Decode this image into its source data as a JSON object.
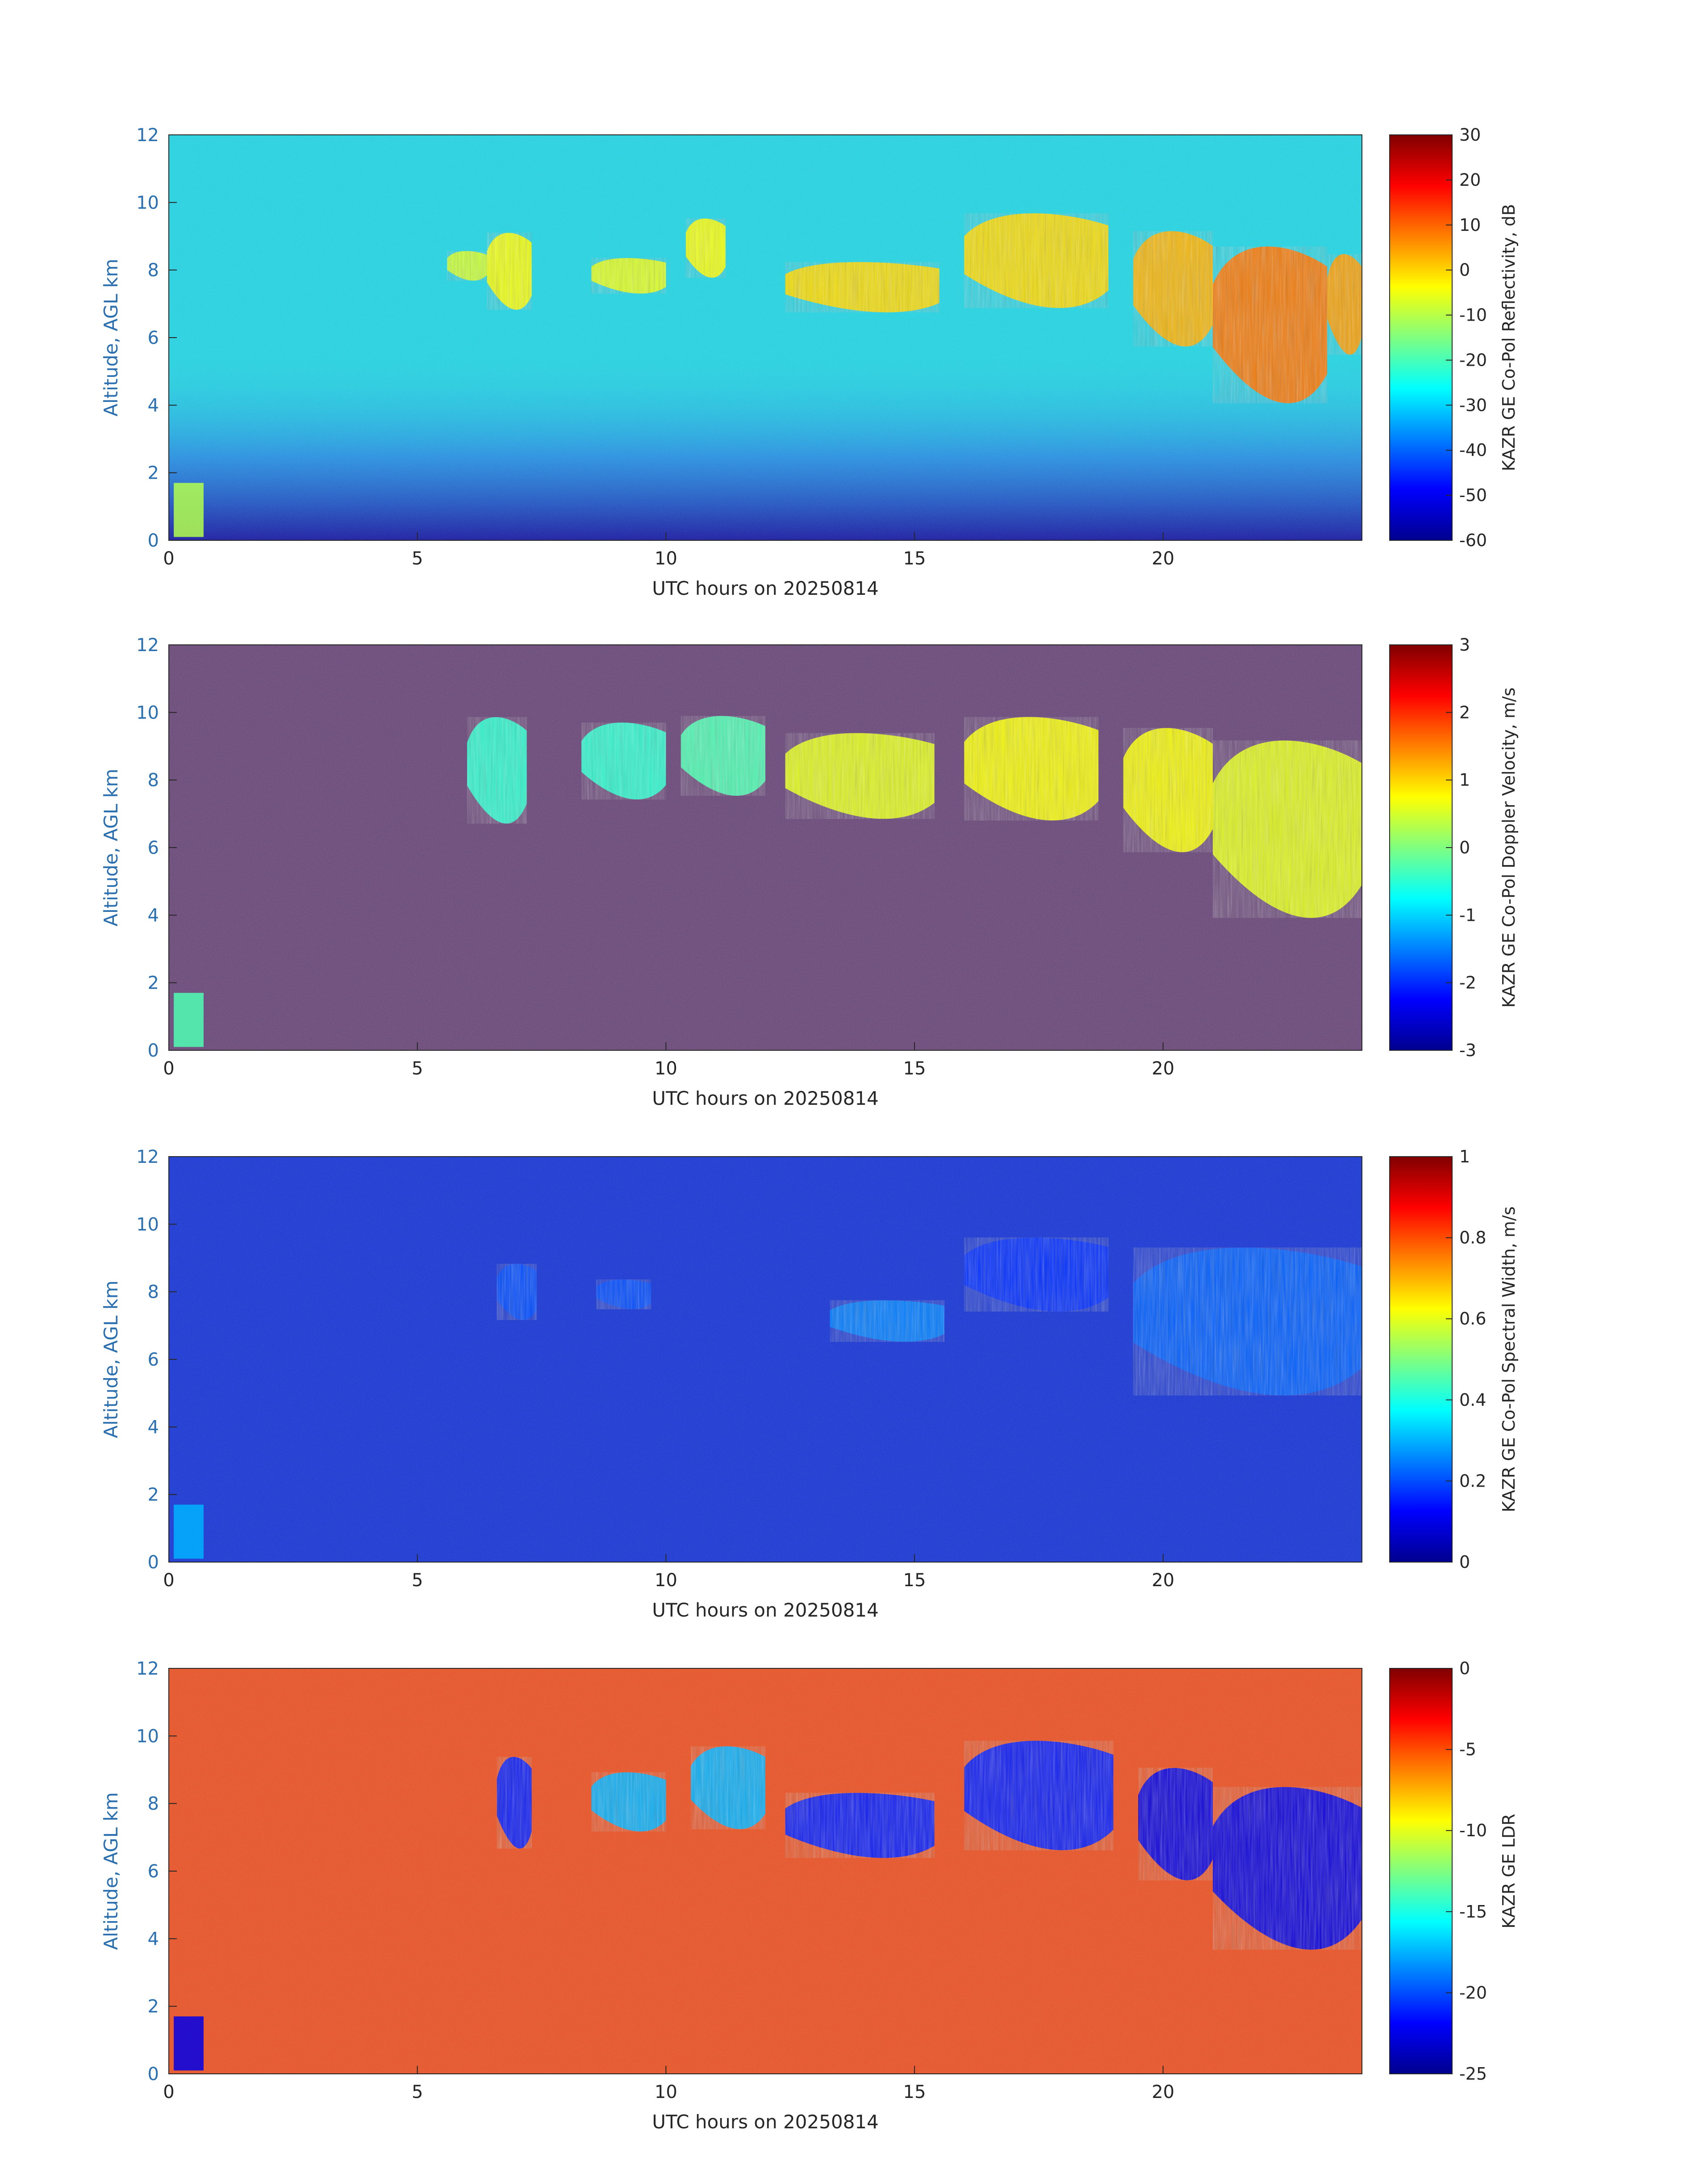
{
  "chart_data": [
    {
      "type": "heatmap",
      "xlabel": "UTC hours on 20250814",
      "ylabel": "Altitude, AGL km",
      "xlim": [
        0,
        24
      ],
      "ylim": [
        0,
        12
      ],
      "xticks": [
        0,
        5,
        10,
        15,
        20
      ],
      "yticks": [
        0,
        2,
        4,
        6,
        8,
        10,
        12
      ],
      "colormap": "jet",
      "colorbar_label": "KAZR GE Co-Pol Reflectivity, dB",
      "clim": [
        -60,
        30
      ],
      "colorbar_ticks": [
        -60,
        -50,
        -40,
        -30,
        -20,
        -10,
        0,
        10,
        20,
        30
      ],
      "background_color": "#17d8e8",
      "cloud_top_km": [
        [
          5.5,
          8.1
        ],
        [
          6.5,
          9.2
        ],
        [
          7.2,
          8.3
        ],
        [
          8.5,
          8.2
        ],
        [
          9.5,
          8.0
        ],
        [
          10.5,
          9.5
        ],
        [
          11.5,
          8.6
        ],
        [
          12.5,
          8.3
        ],
        [
          13.5,
          8.2
        ],
        [
          14.5,
          8.1
        ],
        [
          15.5,
          7.4
        ],
        [
          16.2,
          10.0
        ],
        [
          17.0,
          9.5
        ],
        [
          18.0,
          9.0
        ],
        [
          19.0,
          8.8
        ],
        [
          19.5,
          9.4
        ],
        [
          20.5,
          9.1
        ],
        [
          21.5,
          8.8
        ],
        [
          22.5,
          8.5
        ],
        [
          23.5,
          8.6
        ],
        [
          24.0,
          8.3
        ]
      ],
      "cloud_base_km": [
        [
          5.5,
          7.9
        ],
        [
          6.5,
          7.6
        ],
        [
          7.2,
          6.6
        ],
        [
          8.5,
          7.7
        ],
        [
          9.5,
          7.2
        ],
        [
          10.5,
          8.0
        ],
        [
          11.5,
          7.5
        ],
        [
          12.5,
          7.3
        ],
        [
          13.5,
          7.0
        ],
        [
          14.5,
          6.7
        ],
        [
          15.5,
          6.8
        ],
        [
          16.2,
          7.3
        ],
        [
          17.0,
          7.0
        ],
        [
          18.0,
          6.5
        ],
        [
          19.0,
          6.0
        ],
        [
          19.5,
          6.4
        ],
        [
          20.5,
          5.4
        ],
        [
          21.5,
          4.6
        ],
        [
          22.5,
          3.5
        ],
        [
          23.5,
          5.3
        ],
        [
          24.0,
          5.6
        ]
      ]
    },
    {
      "type": "heatmap",
      "xlabel": "UTC hours on 20250814",
      "ylabel": "Altitude, AGL km",
      "xlim": [
        0,
        24
      ],
      "ylim": [
        0,
        12
      ],
      "xticks": [
        0,
        5,
        10,
        15,
        20
      ],
      "yticks": [
        0,
        2,
        4,
        6,
        8,
        10,
        12
      ],
      "colormap": "jet",
      "colorbar_label": "KAZR GE Co-Pol Doppler Velocity, m/s",
      "clim": [
        -3,
        3
      ],
      "colorbar_ticks": [
        -3,
        -2,
        -1,
        0,
        1,
        2,
        3
      ],
      "background_color": "#4a1a60"
    },
    {
      "type": "heatmap",
      "xlabel": "UTC hours on 20250814",
      "ylabel": "Altitude, AGL km",
      "xlim": [
        0,
        24
      ],
      "ylim": [
        0,
        12
      ],
      "xticks": [
        0,
        5,
        10,
        15,
        20
      ],
      "yticks": [
        0,
        2,
        4,
        6,
        8,
        10,
        12
      ],
      "colormap": "jet",
      "colorbar_label": "KAZR GE Co-Pol Spectral Width, m/s",
      "clim": [
        0,
        1
      ],
      "colorbar_ticks": [
        0,
        0.2,
        0.4,
        0.6,
        0.8,
        1
      ],
      "background_color": "#0a2bd8"
    },
    {
      "type": "heatmap",
      "xlabel": "UTC hours on 20250814",
      "ylabel": "Altitude, AGL km",
      "xlim": [
        0,
        24
      ],
      "ylim": [
        0,
        12
      ],
      "xticks": [
        0,
        5,
        10,
        15,
        20
      ],
      "yticks": [
        0,
        2,
        4,
        6,
        8,
        10,
        12
      ],
      "colormap": "jet",
      "colorbar_label": "KAZR GE LDR",
      "clim": [
        -25,
        0
      ],
      "colorbar_ticks": [
        -25,
        -20,
        -15,
        -10,
        -5,
        0
      ],
      "background_color": "#ef4a18"
    }
  ]
}
